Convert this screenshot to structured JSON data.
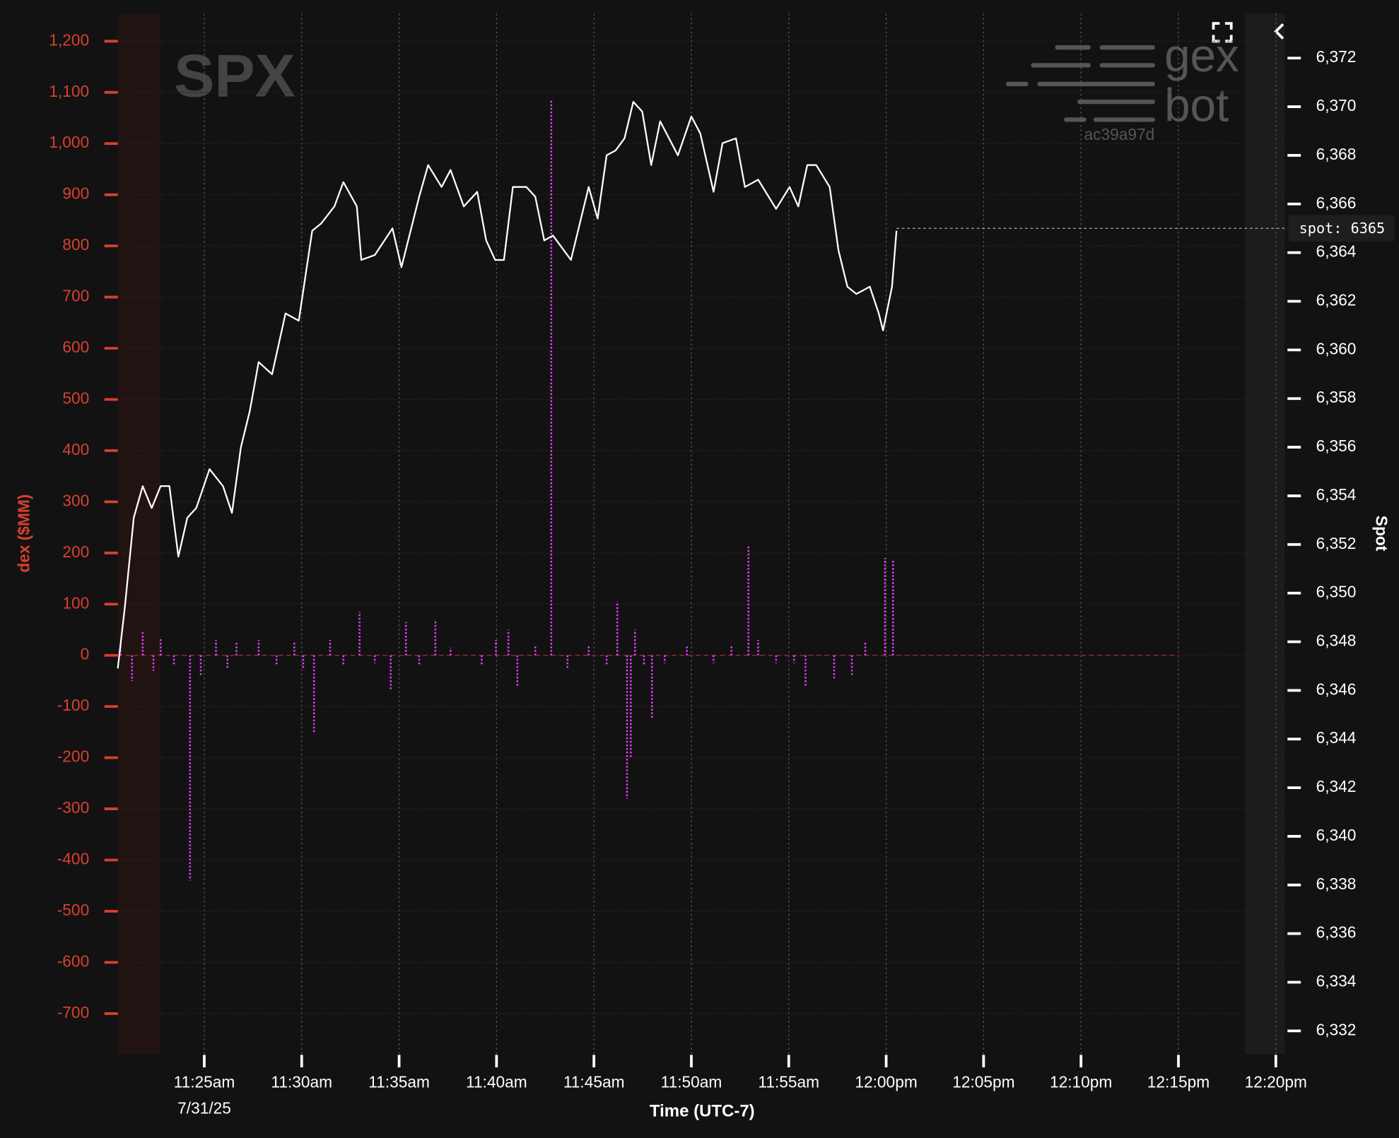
{
  "chart_data": {
    "type": "line-bar",
    "title": "SPX",
    "x_label": "Time (UTC-7)",
    "y_label": "dex ($MM)",
    "y2_label": "Spot",
    "date_label": "7/31/25",
    "watermark": [
      "gex",
      "bot",
      "ac39a97d"
    ],
    "xlim": [
      680.56,
      740.46
    ],
    "xticks": [
      {
        "value": 685,
        "label": "11:25am"
      },
      {
        "value": 690,
        "label": "11:30am"
      },
      {
        "value": 695,
        "label": "11:35am"
      },
      {
        "value": 700,
        "label": "11:40am"
      },
      {
        "value": 705,
        "label": "11:45am"
      },
      {
        "value": 710,
        "label": "11:50am"
      },
      {
        "value": 715,
        "label": "11:55am"
      },
      {
        "value": 720,
        "label": "12:00pm"
      },
      {
        "value": 725,
        "label": "12:05pm"
      },
      {
        "value": 730,
        "label": "12:10pm"
      },
      {
        "value": 735,
        "label": "12:15pm"
      },
      {
        "value": 740,
        "label": "12:20pm"
      }
    ],
    "ylim": [
      -779,
      1254
    ],
    "yticks": [
      {
        "value": 1200,
        "label": "1,200"
      },
      {
        "value": 1100,
        "label": "1,100"
      },
      {
        "value": 1000,
        "label": "1,000"
      },
      900,
      800,
      700,
      600,
      500,
      400,
      300,
      200,
      100,
      0,
      -100,
      -200,
      -300,
      -400,
      -500,
      -600,
      -700
    ],
    "y2lim": [
      6331.05,
      6373.83
    ],
    "y2ticks": [
      {
        "value": 6372,
        "label": "6,372"
      },
      {
        "value": 6370,
        "label": "6,370"
      },
      {
        "value": 6368,
        "label": "6,368"
      },
      {
        "value": 6366,
        "label": "6,366"
      },
      {
        "value": 6364,
        "label": "6,364"
      },
      {
        "value": 6362,
        "label": "6,362"
      },
      {
        "value": 6360,
        "label": "6,360"
      },
      {
        "value": 6358,
        "label": "6,358"
      },
      {
        "value": 6356,
        "label": "6,356"
      },
      {
        "value": 6354,
        "label": "6,354"
      },
      {
        "value": 6352,
        "label": "6,352"
      },
      {
        "value": 6350,
        "label": "6,350"
      },
      {
        "value": 6348,
        "label": "6,348"
      },
      {
        "value": 6346,
        "label": "6,346"
      },
      {
        "value": 6344,
        "label": "6,344"
      },
      {
        "value": 6342,
        "label": "6,342"
      },
      {
        "value": 6340,
        "label": "6,340"
      },
      {
        "value": 6338,
        "label": "6,338"
      },
      {
        "value": 6336,
        "label": "6,336"
      },
      {
        "value": 6334,
        "label": "6,334"
      },
      {
        "value": 6332,
        "label": "6,332"
      }
    ],
    "grid": true,
    "series": [
      {
        "type": "bar",
        "color": "#e040fb",
        "x": [
          680.7,
          681.29,
          681.84,
          682.39,
          682.76,
          683.44,
          684.27,
          684.82,
          685.6,
          686.19,
          686.65,
          687.79,
          688.71,
          689.62,
          690.08,
          690.63,
          691.46,
          692.14,
          692.97,
          693.75,
          694.57,
          695.35,
          696.03,
          696.86,
          697.64,
          699.24,
          699.97,
          700.61,
          701.07,
          701.99,
          702.81,
          703.64,
          704.73,
          705.65,
          706.2,
          706.7,
          706.89,
          707.11,
          707.57,
          707.98,
          708.63,
          709.77,
          711.14,
          712.06,
          712.93,
          713.43,
          714.35,
          715.27,
          715.86,
          717.33,
          718.24,
          718.93,
          719.94,
          720.35
        ],
        "values": [
          20,
          -50,
          45,
          -30,
          35,
          -20,
          -440,
          -40,
          30,
          -25,
          25,
          30,
          -20,
          25,
          -25,
          -150,
          30,
          -20,
          85,
          -15,
          -70,
          65,
          -20,
          70,
          15,
          -20,
          30,
          50,
          -60,
          20,
          1085,
          -25,
          20,
          -20,
          105,
          -280,
          -200,
          50,
          -20,
          -125,
          -15,
          20,
          -15,
          20,
          215,
          30,
          -15,
          -15,
          -60,
          -45,
          -40,
          25,
          190,
          185
        ]
      },
      {
        "type": "line",
        "axis": "y2",
        "color": "#ffffff",
        "x": [
          680.56,
          680.92,
          681.38,
          681.84,
          682.3,
          682.76,
          683.21,
          683.67,
          684.13,
          684.59,
          685.27,
          685.96,
          686.42,
          686.88,
          687.34,
          687.79,
          688.48,
          689.17,
          689.85,
          690.54,
          691.0,
          691.68,
          692.14,
          692.83,
          693.06,
          693.75,
          694.66,
          695.12,
          696.03,
          696.49,
          697.18,
          697.64,
          698.32,
          699.01,
          699.47,
          699.93,
          700.38,
          700.84,
          701.53,
          701.99,
          702.45,
          702.9,
          703.82,
          704.73,
          705.19,
          705.65,
          706.11,
          706.57,
          707.02,
          707.48,
          707.94,
          708.4,
          709.31,
          710.0,
          710.46,
          711.14,
          711.6,
          712.29,
          712.75,
          713.43,
          714.35,
          715.04,
          715.49,
          715.95,
          716.41,
          717.1,
          717.55,
          718.01,
          718.47,
          719.16,
          719.62,
          719.84,
          720.3,
          720.53
        ],
        "values": [
          6346.9,
          6349.4,
          6353.1,
          6354.4,
          6353.5,
          6354.4,
          6354.4,
          6351.5,
          6353.1,
          6353.5,
          6355.1,
          6354.4,
          6353.3,
          6356.0,
          6357.5,
          6359.5,
          6359.0,
          6361.5,
          6361.2,
          6364.9,
          6365.2,
          6365.9,
          6366.9,
          6365.9,
          6363.7,
          6363.9,
          6365.0,
          6363.4,
          6366.3,
          6367.6,
          6366.7,
          6367.4,
          6365.9,
          6366.5,
          6364.5,
          6363.7,
          6363.7,
          6366.7,
          6366.7,
          6366.3,
          6364.5,
          6364.7,
          6363.7,
          6366.7,
          6365.4,
          6368.0,
          6368.2,
          6368.7,
          6370.2,
          6369.8,
          6367.6,
          6369.4,
          6368.0,
          6369.6,
          6368.9,
          6366.5,
          6368.5,
          6368.7,
          6366.7,
          6367.0,
          6365.8,
          6366.7,
          6365.9,
          6367.6,
          6367.6,
          6366.7,
          6364.1,
          6362.6,
          6362.3,
          6362.6,
          6361.5,
          6360.8,
          6362.6,
          6364.9
        ]
      }
    ],
    "annotations": [
      {
        "text": "spot: 6365",
        "value": 6365,
        "axis": "y2"
      }
    ]
  }
}
